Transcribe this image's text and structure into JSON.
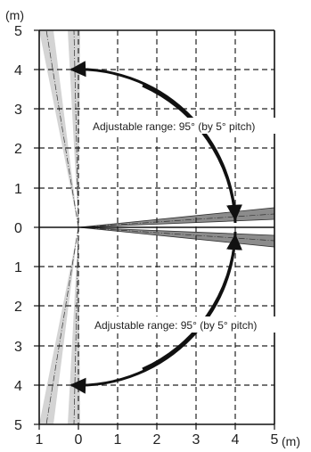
{
  "diagram": {
    "y_unit_label": "(m)",
    "x_unit_label": "(m)",
    "y_ticks": [
      "5",
      "4",
      "3",
      "2",
      "1",
      "0",
      "1",
      "2",
      "3",
      "4",
      "5"
    ],
    "x_ticks": [
      "1",
      "0",
      "1",
      "2",
      "3",
      "4",
      "5"
    ],
    "annotation_upper": "Adjustable range: 95° (by 5° pitch)",
    "annotation_lower": "Adjustable range: 95° (by 5° pitch)",
    "colors": {
      "grid": "#222222",
      "beam_dark": "#8c8c8c",
      "beam_light": "#d4d4d4",
      "arrow": "#111111"
    },
    "icons": [
      "arrowhead-icon"
    ]
  }
}
